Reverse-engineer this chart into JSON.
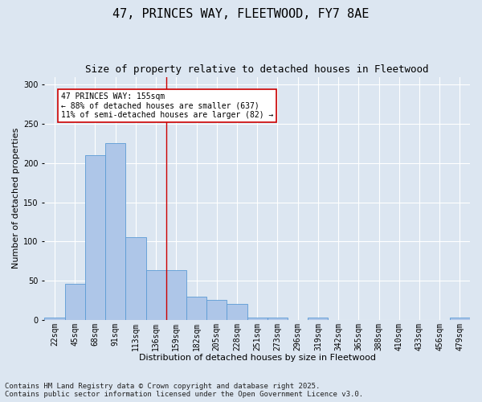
{
  "title": "47, PRINCES WAY, FLEETWOOD, FY7 8AE",
  "subtitle": "Size of property relative to detached houses in Fleetwood",
  "xlabel": "Distribution of detached houses by size in Fleetwood",
  "ylabel": "Number of detached properties",
  "categories": [
    "22sqm",
    "45sqm",
    "68sqm",
    "91sqm",
    "113sqm",
    "136sqm",
    "159sqm",
    "182sqm",
    "205sqm",
    "228sqm",
    "251sqm",
    "273sqm",
    "296sqm",
    "319sqm",
    "342sqm",
    "365sqm",
    "388sqm",
    "410sqm",
    "433sqm",
    "456sqm",
    "479sqm"
  ],
  "values": [
    3,
    46,
    210,
    225,
    105,
    63,
    63,
    30,
    25,
    20,
    3,
    3,
    0,
    3,
    0,
    0,
    0,
    0,
    0,
    0,
    3
  ],
  "bar_color": "#aec6e8",
  "bar_edge_color": "#5b9bd5",
  "background_color": "#dce6f1",
  "grid_color": "#ffffff",
  "vline_index": 6,
  "vline_color": "#cc0000",
  "annotation_text": "47 PRINCES WAY: 155sqm\n← 88% of detached houses are smaller (637)\n11% of semi-detached houses are larger (82) →",
  "annotation_box_color": "#cc0000",
  "ylim": [
    0,
    310
  ],
  "yticks": [
    0,
    50,
    100,
    150,
    200,
    250,
    300
  ],
  "footnote": "Contains HM Land Registry data © Crown copyright and database right 2025.\nContains public sector information licensed under the Open Government Licence v3.0.",
  "title_fontsize": 11,
  "subtitle_fontsize": 9,
  "label_fontsize": 8,
  "tick_fontsize": 7,
  "annotation_fontsize": 7,
  "footnote_fontsize": 6.5
}
